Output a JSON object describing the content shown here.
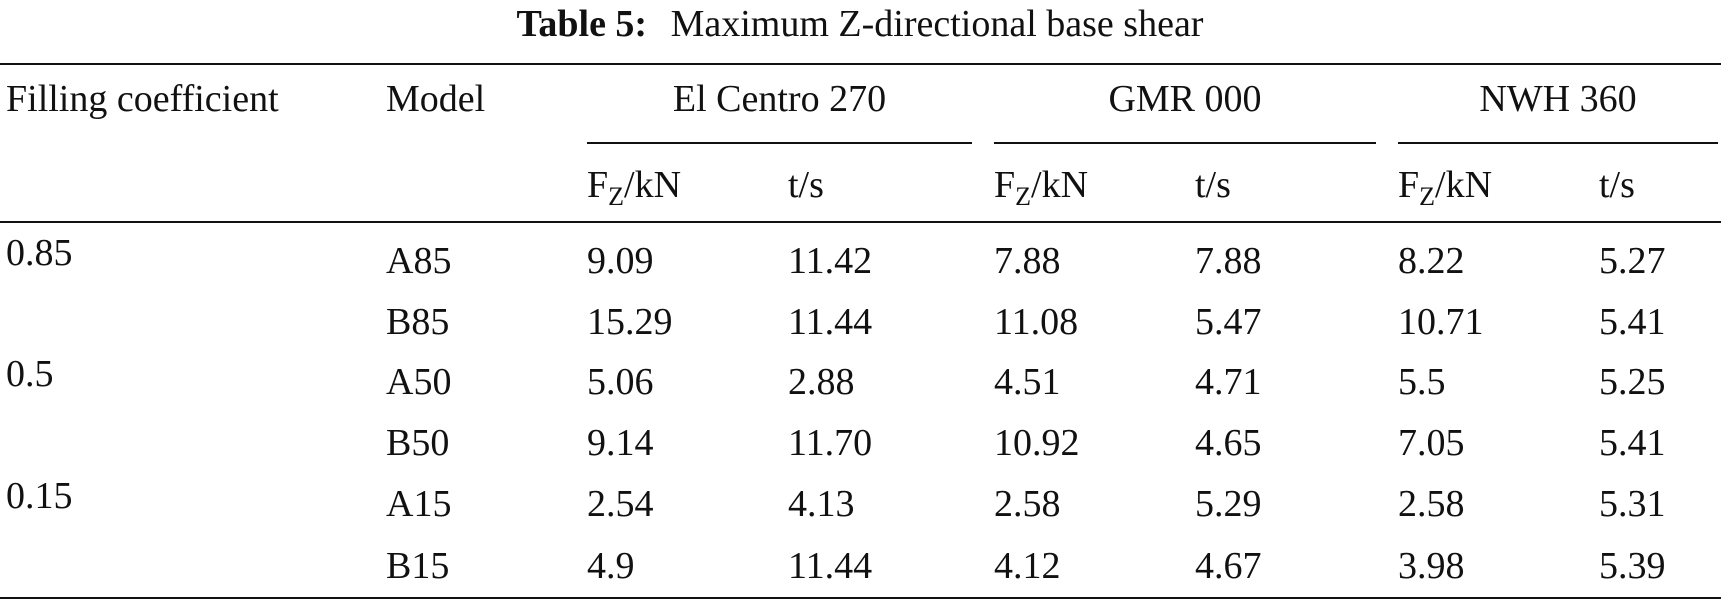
{
  "caption": {
    "label": "Table 5:",
    "text": "Maximum Z-directional base shear"
  },
  "table": {
    "header": {
      "filling": "Filling coefficient",
      "model": "Model",
      "groups": [
        "El Centro 270",
        "GMR 000",
        "NWH 360"
      ],
      "force": {
        "symbol": "F",
        "subscript": "Z",
        "unit": "/kN"
      },
      "time": "t/s"
    },
    "rows": [
      [
        "0.85",
        "A85",
        "9.09",
        "11.42",
        "7.88",
        "7.88",
        "8.22",
        "5.27"
      ],
      [
        null,
        "B85",
        "15.29",
        "11.44",
        "11.08",
        "5.47",
        "10.71",
        "5.41"
      ],
      [
        "0.5",
        "A50",
        "5.06",
        "2.88",
        "4.51",
        "4.71",
        "5.5",
        "5.25"
      ],
      [
        null,
        "B50",
        "9.14",
        "11.70",
        "10.92",
        "4.65",
        "7.05",
        "5.41"
      ],
      [
        "0.15",
        "A15",
        "2.54",
        "4.13",
        "2.58",
        "5.29",
        "2.58",
        "5.31"
      ],
      [
        null,
        "B15",
        "4.9",
        "11.44",
        "4.12",
        "4.67",
        "3.98",
        "5.39"
      ]
    ]
  }
}
